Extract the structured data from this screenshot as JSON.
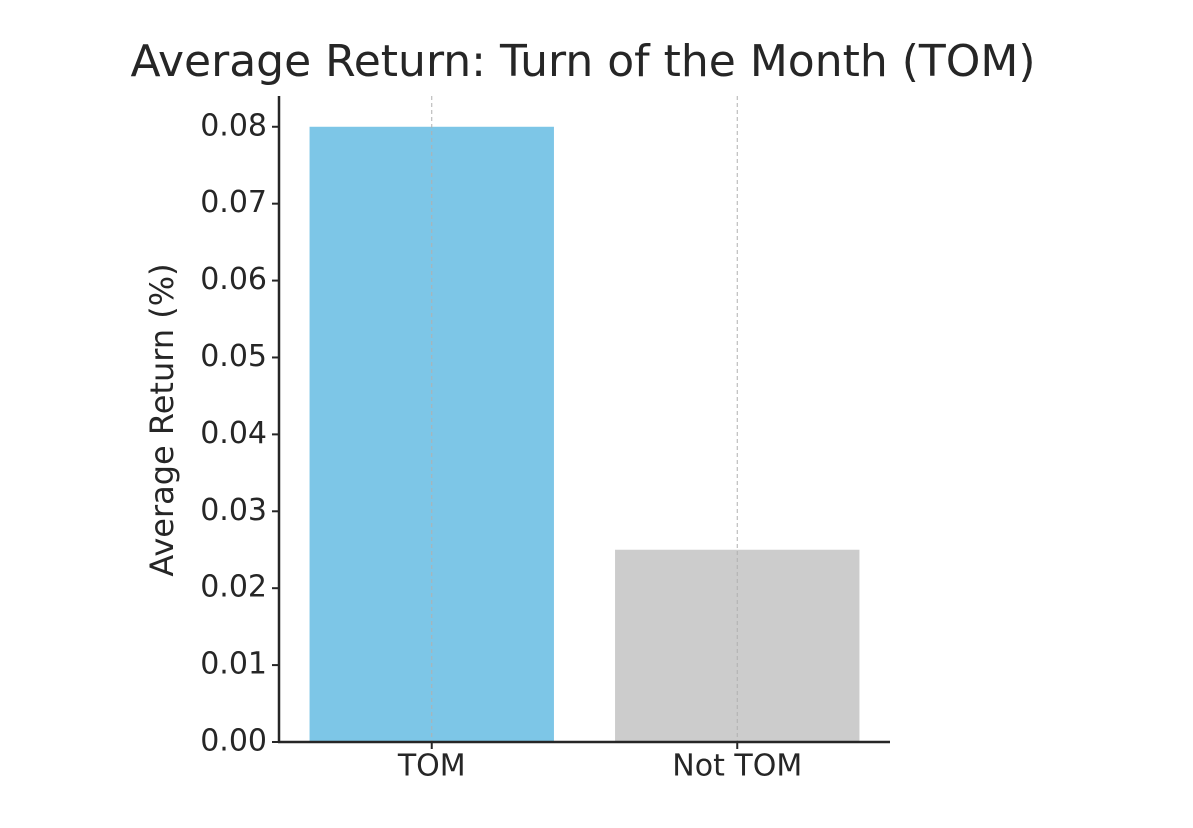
{
  "chart_data": {
    "type": "bar",
    "title": "Average Return: Turn of the Month (TOM)",
    "y_label": "Average Return (%)",
    "categories": [
      "TOM",
      "Not TOM"
    ],
    "values": [
      0.08,
      0.025
    ],
    "colors": [
      "#7dc6e7",
      "#cccccc"
    ],
    "ylim": [
      0,
      0.084
    ],
    "yticks": [
      {
        "value": 0,
        "label": "0.00"
      },
      0.01,
      0.02,
      0.03,
      0.04,
      0.05,
      0.06,
      0.07,
      0.08
    ],
    "grid": "x"
  }
}
